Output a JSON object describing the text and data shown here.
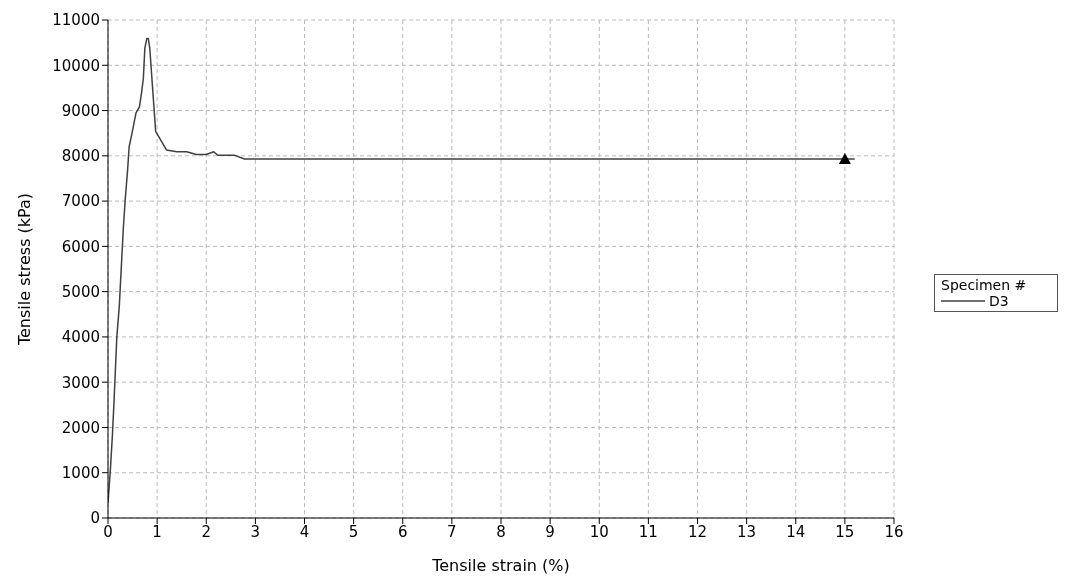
{
  "chart_data": {
    "type": "line",
    "xlabel": "Tensile strain (%)",
    "ylabel": "Tensile stress (kPa)",
    "legend_title": "Specimen #",
    "xlim": [
      0,
      16
    ],
    "xticks": [
      0,
      1,
      2,
      3,
      4,
      5,
      6,
      7,
      8,
      9,
      10,
      11,
      12,
      13,
      14,
      15,
      16
    ],
    "ylim": [
      0,
      11000
    ],
    "yticks": [
      0,
      1000,
      2000,
      3000,
      4000,
      5000,
      6000,
      7000,
      8000,
      9000,
      10000,
      11000
    ],
    "grid": true,
    "legend": "right",
    "series": [
      {
        "name": "D3",
        "color": "#404040",
        "marker": "none",
        "x": [
          0,
          0.05,
          0.09,
          0.12,
          0.15,
          0.18,
          0.23,
          0.27,
          0.31,
          0.35,
          0.4,
          0.43,
          0.48,
          0.57,
          0.64,
          0.68,
          0.72,
          0.75,
          0.79,
          0.82,
          0.85,
          0.97,
          1.19,
          1.4,
          1.6,
          1.8,
          2.0,
          2.15,
          2.24,
          2.58,
          2.78,
          15.2
        ],
        "values": [
          330,
          1090,
          1840,
          2510,
          3260,
          4010,
          4680,
          5520,
          6360,
          7030,
          7700,
          8200,
          8450,
          8950,
          9080,
          9370,
          9710,
          10380,
          10590,
          10590,
          10380,
          8540,
          8130,
          8090,
          8090,
          8030,
          8030,
          8090,
          8010,
          8010,
          7930,
          7930
        ]
      },
      {
        "type": "scatter",
        "color": "#000000",
        "marker": "triangle",
        "x": [
          15
        ],
        "values": [
          7930
        ]
      }
    ]
  }
}
